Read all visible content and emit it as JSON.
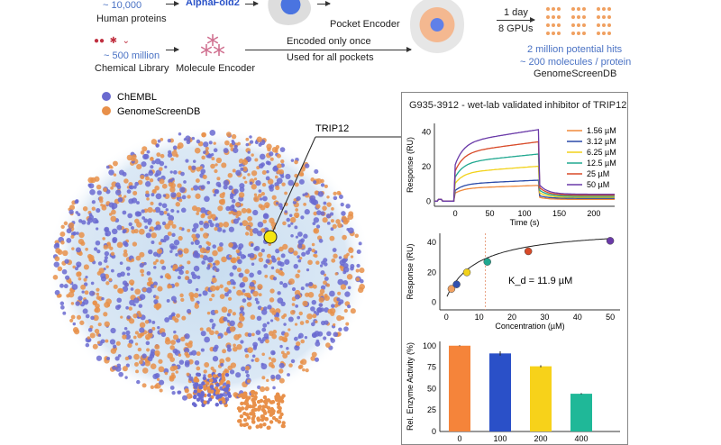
{
  "pipeline": {
    "proteins_count": "~ 10,000",
    "proteins_label": "Human proteins",
    "alphafold": "AlphaFold2",
    "pocket_encoder": "Pocket Encoder",
    "library_count": "~ 500 million",
    "library_label": "Chemical Library",
    "molecule_encoder": "Molecule Encoder",
    "encoded_once": "Encoded only once",
    "used_for_all": "Used for all pockets",
    "time": "1 day",
    "gpus": "8 GPUs",
    "hits": "2 million potential hits",
    "per_protein": "~ 200 molecules / protein",
    "db": "GenomeScreenDB"
  },
  "chart_data": [
    {
      "type": "scatter",
      "legend_position": "top-left",
      "series": [
        {
          "name": "ChEMBL",
          "color": "#6a6ad0"
        },
        {
          "name": "GenomeScreenDB",
          "color": "#e8904a"
        }
      ],
      "annotation": "TRIP12",
      "highlight_color": "#f5e60f"
    },
    {
      "type": "line",
      "title": "G935-3912 - wet-lab validated inhibitor of TRIP12",
      "xlabel": "Time (s)",
      "ylabel": "Response (RU)",
      "xlim": [
        -30,
        230
      ],
      "ylim": [
        -3,
        45
      ],
      "xticks": [
        0,
        50,
        100,
        150,
        200
      ],
      "yticks": [
        0,
        20,
        40
      ],
      "legend_position": "top-right",
      "series": [
        {
          "name": "1.56 µM",
          "color": "#f08a3c",
          "plateau": 9
        },
        {
          "name": "3.12 µM",
          "color": "#2a4aa8",
          "plateau": 12
        },
        {
          "name": "6.25 µM",
          "color": "#f2d21a",
          "plateau": 20
        },
        {
          "name": "12.5 µM",
          "color": "#20a890",
          "plateau": 27
        },
        {
          "name": "25 µM",
          "color": "#d84a28",
          "plateau": 34
        },
        {
          "name": "50 µM",
          "color": "#6a3aa8",
          "plateau": 41
        }
      ]
    },
    {
      "type": "scatter",
      "xlabel": "Concentration (µM)",
      "ylabel": "Response (RU)",
      "annotation": "K_d = 11.9 µM",
      "kd": 11.9,
      "xlim": [
        -2,
        53
      ],
      "ylim": [
        -5,
        46
      ],
      "xticks": [
        0,
        10,
        20,
        30,
        40,
        50
      ],
      "yticks": [
        0,
        20,
        40
      ],
      "x": [
        1.56,
        3.12,
        6.25,
        12.5,
        25,
        50
      ],
      "y": [
        9,
        12,
        20,
        27,
        34,
        41
      ],
      "colors": [
        "#f0a060",
        "#3050b0",
        "#f2d21a",
        "#20a890",
        "#d84a28",
        "#6a3aa8"
      ]
    },
    {
      "type": "bar",
      "ylabel": "Rel. Enzyme Activity (%)",
      "ylim": [
        0,
        105
      ],
      "yticks": [
        0,
        25,
        50,
        75,
        100
      ],
      "categories": [
        "0",
        "100",
        "200",
        "400"
      ],
      "values": [
        100,
        91,
        76,
        44
      ],
      "errors": [
        0.5,
        2.5,
        1.2,
        0.8
      ],
      "colors": [
        "#f5843a",
        "#2a50c8",
        "#f7d21a",
        "#1fb898"
      ]
    }
  ]
}
